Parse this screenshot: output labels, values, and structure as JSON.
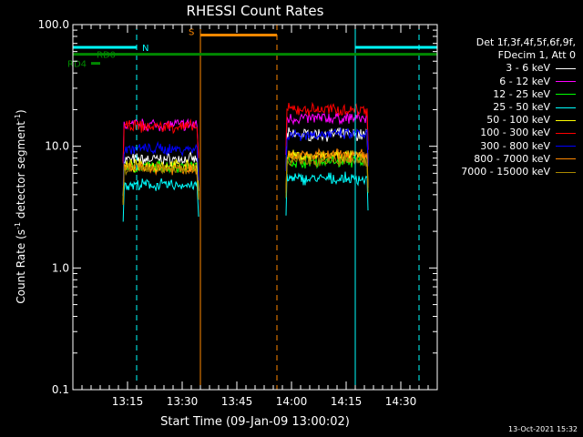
{
  "chart_data": {
    "type": "line",
    "title": "RHESSI Count Rates",
    "xlabel": "Start Time (09-Jan-09 13:00:02)",
    "ylabel_parts": [
      "Count Rate (s",
      "-1",
      " detector segment",
      "-1",
      ")"
    ],
    "y_scale": "log",
    "ylim": [
      0.1,
      100.0
    ],
    "y_ticks": [
      {
        "value": 0.1,
        "label": "0.1"
      },
      {
        "value": 1.0,
        "label": "1.0"
      },
      {
        "value": 10.0,
        "label": "10.0"
      },
      {
        "value": 100.0,
        "label": "100.0"
      }
    ],
    "x_range_minutes": [
      0,
      100
    ],
    "x_ticks": [
      {
        "value": 15,
        "label": "13:15"
      },
      {
        "value": 30,
        "label": "13:30"
      },
      {
        "value": 45,
        "label": "13:45"
      },
      {
        "value": 60,
        "label": "14:00"
      },
      {
        "value": 75,
        "label": "14:15"
      },
      {
        "value": 90,
        "label": "14:30"
      }
    ],
    "legend_header": [
      "Det 1f,3f,4f,5f,6f,9f,",
      "FDecim 1, Att 0"
    ],
    "data_segments": [
      [
        13.8,
        34.5
      ],
      [
        58.5,
        81.0
      ]
    ],
    "series": [
      {
        "name": "3 - 6 keV",
        "color": "#ffffff",
        "values": [
          7.8,
          12.5
        ]
      },
      {
        "name": "6 - 12 keV",
        "color": "#ff00ff",
        "values": [
          15.0,
          17.0
        ]
      },
      {
        "name": "12 - 25 keV",
        "color": "#00ff00",
        "values": [
          6.8,
          7.5
        ]
      },
      {
        "name": "25 - 50 keV",
        "color": "#00ffff",
        "values": [
          4.8,
          5.4
        ]
      },
      {
        "name": "50 - 100 keV",
        "color": "#ffff00",
        "values": [
          6.9,
          8.3
        ]
      },
      {
        "name": "100 - 300 keV",
        "color": "#ff0000",
        "values": [
          14.5,
          20.0
        ]
      },
      {
        "name": "300 - 800 keV",
        "color": "#0000ff",
        "values": [
          9.5,
          12.5
        ]
      },
      {
        "name": "800 - 7000 keV",
        "color": "#ff8800",
        "values": [
          6.6,
          8.4
        ]
      },
      {
        "name": "7000 - 15000 keV",
        "color": "#aa8800",
        "values": [
          6.6,
          7.6
        ]
      }
    ],
    "bars": [
      {
        "label": "N",
        "color": "#00ffff",
        "y": 65,
        "ranges": [
          [
            0,
            17.5
          ],
          [
            77.5,
            100
          ]
        ]
      },
      {
        "label": "RD0",
        "color": "#008800",
        "y": 57,
        "ranges": [
          [
            0,
            100
          ]
        ]
      },
      {
        "label": "RD4",
        "color": "#008800",
        "y": 48,
        "ranges": [
          [
            5,
            7.5
          ]
        ]
      },
      {
        "label": "S",
        "color": "#ff8800",
        "y": 82,
        "ranges": [
          [
            35,
            56
          ]
        ]
      }
    ],
    "vlines": [
      {
        "x": 0,
        "color": "#00ffff",
        "style": "solid"
      },
      {
        "x": 17.5,
        "color": "#00ffff",
        "style": "dashed"
      },
      {
        "x": 35,
        "color": "#ff8800",
        "style": "solid"
      },
      {
        "x": 56,
        "color": "#ff8800",
        "style": "dashed"
      },
      {
        "x": 77.5,
        "color": "#00ffff",
        "style": "solid"
      },
      {
        "x": 95,
        "color": "#00ffff",
        "style": "dashed"
      }
    ]
  },
  "footer": {
    "timestamp": "13-Oct-2021 15:32"
  }
}
